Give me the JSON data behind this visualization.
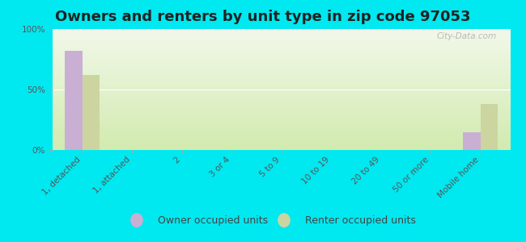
{
  "title": "Owners and renters by unit type in zip code 97053",
  "categories": [
    "1, detached",
    "1, attached",
    "2",
    "3 or 4",
    "5 to 9",
    "10 to 19",
    "20 to 49",
    "50 or more",
    "Mobile home"
  ],
  "owner_values": [
    82,
    0,
    0,
    0,
    0,
    0,
    0,
    0,
    15
  ],
  "renter_values": [
    62,
    0,
    0,
    0,
    0,
    0,
    0,
    0,
    38
  ],
  "owner_color": "#c9afd4",
  "renter_color": "#ccd4a0",
  "background_color": "#00e8f0",
  "plot_bg_top": "#f2f8ea",
  "plot_bg_bottom": "#deefc0",
  "ylim": [
    0,
    100
  ],
  "yticks": [
    0,
    50,
    100
  ],
  "ytick_labels": [
    "0%",
    "50%",
    "100%"
  ],
  "bar_width": 0.35,
  "legend_labels": [
    "Owner occupied units",
    "Renter occupied units"
  ],
  "watermark": "City-Data.com",
  "title_fontsize": 13,
  "tick_fontsize": 7.5,
  "legend_fontsize": 9
}
